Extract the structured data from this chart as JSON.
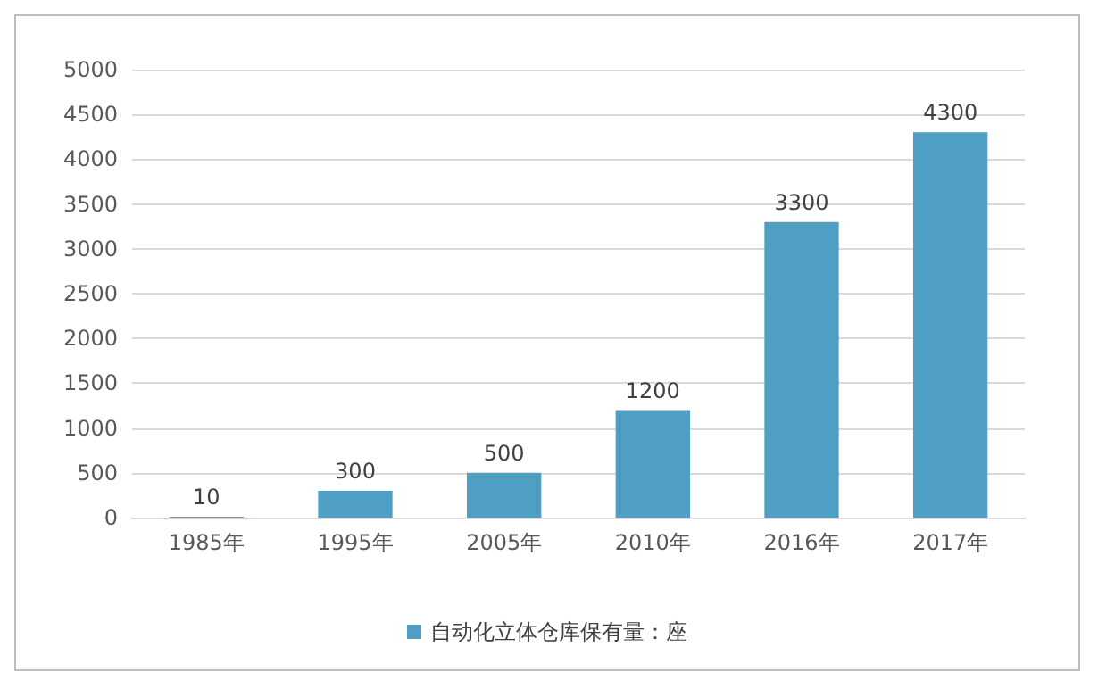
{
  "chart_data": {
    "type": "bar",
    "categories": [
      "1985年",
      "1995年",
      "2005年",
      "2010年",
      "2016年",
      "2017年"
    ],
    "series": [
      {
        "name": "自动化立体仓库保有量：座",
        "color": "#4f9fc4",
        "values": [
          10,
          300,
          500,
          1200,
          3300,
          4300
        ]
      }
    ],
    "ylim": [
      0,
      5000
    ],
    "yticks": [
      0,
      500,
      1000,
      1500,
      2000,
      2500,
      3000,
      3500,
      4000,
      4500,
      5000
    ],
    "grid": "y",
    "legend": "bottom",
    "data_labels": true
  }
}
